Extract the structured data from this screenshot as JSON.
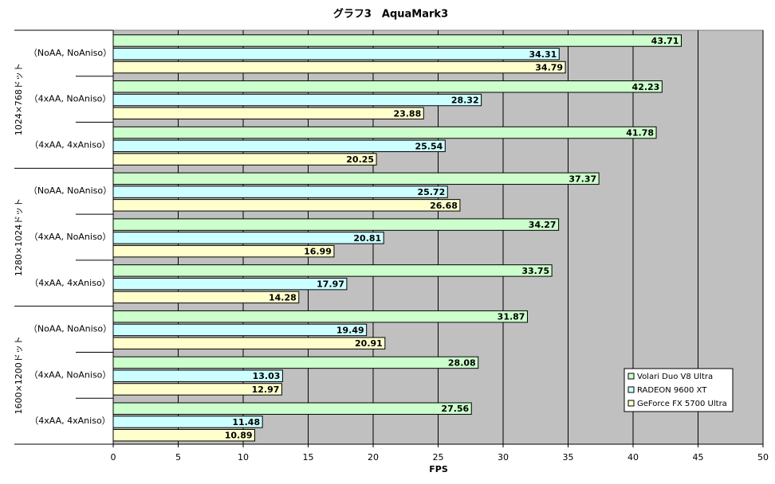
{
  "chart_data": {
    "type": "hbar",
    "title": "グラフ3　AquaMark3",
    "x_label": "FPS",
    "groups": [
      "1024×768ドット",
      "1280×1024ドット",
      "1600×1200ドット"
    ],
    "categories": [
      "（NoAA, NoAniso）",
      "（4xAA, NoAniso）",
      "（4xAA, 4xAniso）",
      "（NoAA, NoAniso）",
      "（4xAA, NoAniso）",
      "（4xAA, 4xAniso）",
      "（NoAA, NoAniso）",
      "（4xAA, NoAniso）",
      "（4xAA, 4xAniso）"
    ],
    "series": [
      {
        "name": "Volari Duo V8 Ultra",
        "color": "#ccffcc",
        "values": [
          43.71,
          42.23,
          41.78,
          37.37,
          34.27,
          33.75,
          31.87,
          28.08,
          27.56
        ]
      },
      {
        "name": "RADEON 9600 XT",
        "color": "#ccffff",
        "values": [
          34.31,
          28.32,
          25.54,
          25.72,
          20.81,
          17.97,
          19.49,
          13.03,
          11.48
        ]
      },
      {
        "name": "GeForce FX 5700 Ultra",
        "color": "#ffffcc",
        "values": [
          34.79,
          23.88,
          20.25,
          26.68,
          16.99,
          14.28,
          20.91,
          12.97,
          10.89
        ]
      }
    ],
    "xlim": [
      0,
      50
    ],
    "xticks": [
      0,
      5,
      10,
      15,
      20,
      25,
      30,
      35,
      40,
      45,
      50
    ],
    "grid": true,
    "legend": "bottom-right"
  }
}
